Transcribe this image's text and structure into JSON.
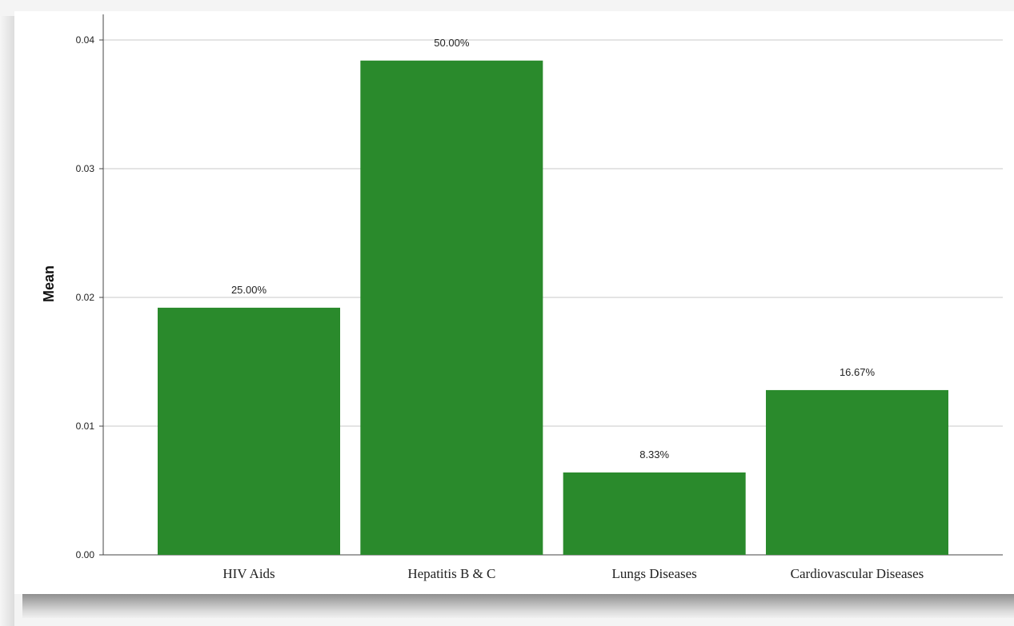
{
  "chart_data": {
    "type": "bar",
    "title": "",
    "xlabel": "",
    "ylabel": "Mean",
    "categories": [
      "HIV Aids",
      "Hepatitis B & C",
      "Lungs Diseases",
      "Cardiovascular Diseases"
    ],
    "values": [
      0.0192,
      0.0384,
      0.0064,
      0.0128
    ],
    "data_labels": [
      "25.00%",
      "50.00%",
      "8.33%",
      "16.67%"
    ],
    "ylim": [
      0,
      0.042
    ],
    "yticks": [
      0.0,
      0.01,
      0.02,
      0.03,
      0.04
    ],
    "ytick_labels": [
      "0.00",
      "0.01",
      "0.02",
      "0.03",
      "0.04"
    ],
    "grid": true,
    "bar_color": "#2a8a2c"
  }
}
